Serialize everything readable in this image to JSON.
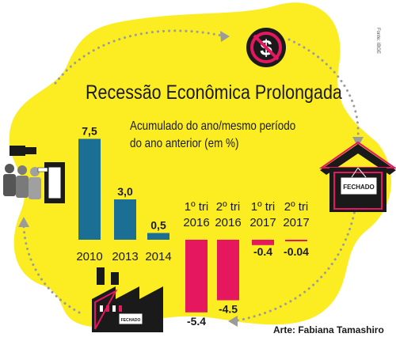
{
  "title": "Recessão Econômica Prolongada",
  "subtitle_lines": [
    "Acumulado do ano/mesmo período",
    "do ano anterior (em %)"
  ],
  "source_note": "Fonte: IBGE",
  "credit": "Arte: Fabiana Tamashiro",
  "icons": [
    "dollar-prohibited-icon",
    "closed-house-icon",
    "closed-factory-icon",
    "people-pointing-icon"
  ],
  "colors": {
    "background_blob": "#fbed21",
    "positive": "#1b6e94",
    "negative": "#e5175f",
    "dots": "#9b9b9b",
    "text": "#1a1a1a"
  },
  "sign_text": "FECHADO",
  "chart_data": {
    "type": "bar",
    "categories": [
      [
        "2010"
      ],
      [
        "2013"
      ],
      [
        "2014"
      ],
      [
        "1º tri",
        "2016"
      ],
      [
        "2º tri",
        "2016"
      ],
      [
        "1º tri",
        "2017"
      ],
      [
        "2º tri",
        "2017"
      ]
    ],
    "values": [
      7.5,
      3.0,
      0.5,
      -5.4,
      -4.5,
      -0.4,
      -0.04
    ],
    "value_labels": [
      "7,5",
      "3,0",
      "0,5",
      "-5.4",
      "-4.5",
      "-0.4",
      "-0.04"
    ],
    "title": "Recessão Econômica Prolongada",
    "subtitle": "Acumulado do ano/mesmo período do ano anterior (em %)",
    "xlabel": "",
    "ylabel": "",
    "ylim": [
      -6,
      8
    ],
    "grid": false,
    "legend": "none"
  }
}
